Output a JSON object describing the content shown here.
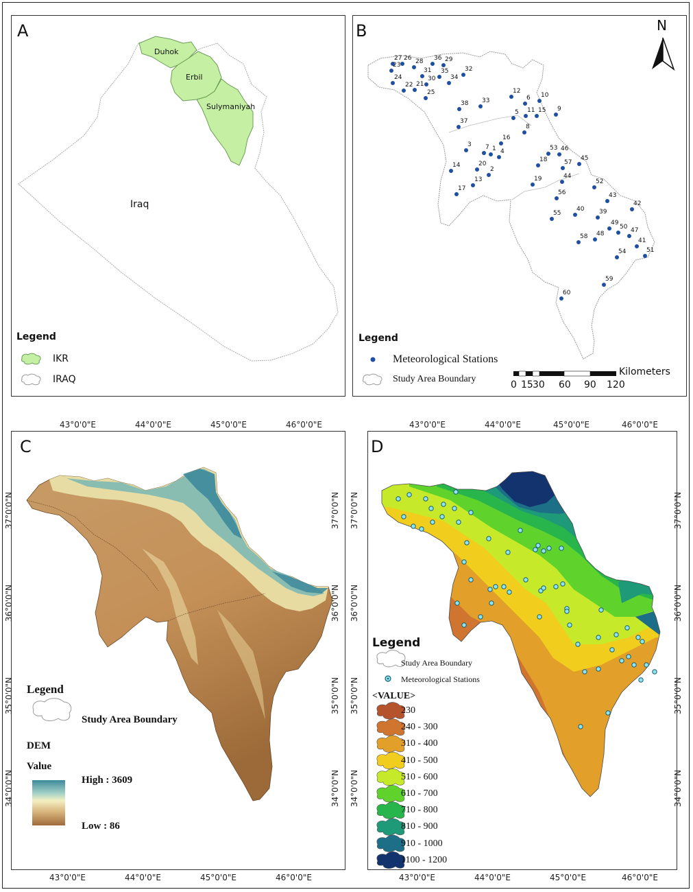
{
  "panels": {
    "a": {
      "label": "A",
      "regions": [
        "Duhok",
        "Erbil",
        "Sulymaniyah"
      ],
      "country": "Iraq",
      "legend_title": "Legend",
      "legend_items": [
        "IKR",
        "IRAQ"
      ],
      "colors": {
        "ikr": "#c5f0a4",
        "ikr_border": "#6b9c55"
      }
    },
    "b": {
      "label": "B",
      "north": "N",
      "legend_title": "Legend",
      "legend_items": [
        "Meteorological Stations",
        "Study Area Boundary"
      ],
      "scale_unit": "Kilometers",
      "scale_labels": [
        "0",
        "15",
        "30",
        "60",
        "90",
        "120"
      ],
      "station_color": "#1f4fa3",
      "stations": [
        {
          "id": "1"
        },
        {
          "id": "2"
        },
        {
          "id": "3"
        },
        {
          "id": "4"
        },
        {
          "id": "5"
        },
        {
          "id": "6"
        },
        {
          "id": "7"
        },
        {
          "id": "8"
        },
        {
          "id": "9"
        },
        {
          "id": "10"
        },
        {
          "id": "11"
        },
        {
          "id": "12"
        },
        {
          "id": "13"
        },
        {
          "id": "14"
        },
        {
          "id": "15"
        },
        {
          "id": "16"
        },
        {
          "id": "17"
        },
        {
          "id": "18"
        },
        {
          "id": "19"
        },
        {
          "id": "20"
        },
        {
          "id": "21"
        },
        {
          "id": "22"
        },
        {
          "id": "23"
        },
        {
          "id": "24"
        },
        {
          "id": "25"
        },
        {
          "id": "26"
        },
        {
          "id": "27"
        },
        {
          "id": "28"
        },
        {
          "id": "29"
        },
        {
          "id": "30"
        },
        {
          "id": "31"
        },
        {
          "id": "32"
        },
        {
          "id": "33"
        },
        {
          "id": "34"
        },
        {
          "id": "35"
        },
        {
          "id": "36"
        },
        {
          "id": "37"
        },
        {
          "id": "38"
        },
        {
          "id": "39"
        },
        {
          "id": "40"
        },
        {
          "id": "41"
        },
        {
          "id": "42"
        },
        {
          "id": "43"
        },
        {
          "id": "44"
        },
        {
          "id": "45"
        },
        {
          "id": "46"
        },
        {
          "id": "47"
        },
        {
          "id": "48"
        },
        {
          "id": "49"
        },
        {
          "id": "50"
        },
        {
          "id": "51"
        },
        {
          "id": "52"
        },
        {
          "id": "53"
        },
        {
          "id": "54"
        },
        {
          "id": "55"
        },
        {
          "id": "56"
        },
        {
          "id": "57"
        },
        {
          "id": "58"
        },
        {
          "id": "59"
        },
        {
          "id": "60"
        }
      ]
    },
    "c": {
      "label": "C",
      "lon_ticks": [
        "43°0'0\"E",
        "44°0'0\"E",
        "45°0'0\"E",
        "46°0'0\"E"
      ],
      "lat_ticks": [
        "37°0'0\"N",
        "36°0'0\"N",
        "35°0'0\"N",
        "34°0'0\"N"
      ],
      "legend_title": "Legend",
      "boundary_label": "Study Area Boundary",
      "dem_title": "DEM",
      "value_title": "Value",
      "high_label": "High : 3609",
      "low_label": "Low : 86",
      "ramp_colors": [
        "#3d8a9c",
        "#a8d4c8",
        "#f4efc2",
        "#d9b57c",
        "#9e6a3a"
      ]
    },
    "d": {
      "label": "D",
      "lon_ticks": [
        "43°0'0\"E",
        "44°0'0\"E",
        "45°0'0\"E",
        "46°0'0\"E"
      ],
      "lat_ticks": [
        "37°0'0\"N",
        "36°0'0\"N",
        "35°0'0\"N",
        "34°0'0\"N"
      ],
      "legend_title": "Legend",
      "boundary_label": "Study Area Boundary",
      "stations_label": "Meteorological Stations",
      "value_title": "<VALUE>",
      "classes": [
        {
          "label": "230",
          "color": "#b5532c"
        },
        {
          "label": "240 - 300",
          "color": "#cf7530"
        },
        {
          "label": "310 - 400",
          "color": "#e2a02a"
        },
        {
          "label": "410 - 500",
          "color": "#f1cd1e"
        },
        {
          "label": "510 - 600",
          "color": "#c6ea2a"
        },
        {
          "label": "610 - 700",
          "color": "#5fd22c"
        },
        {
          "label": "710 - 800",
          "color": "#27b54c"
        },
        {
          "label": "810 - 900",
          "color": "#1f9a78"
        },
        {
          "label": "910 - 1000",
          "color": "#1c6f86"
        },
        {
          "label": "1100  - 1200",
          "color": "#12336e"
        }
      ]
    }
  }
}
